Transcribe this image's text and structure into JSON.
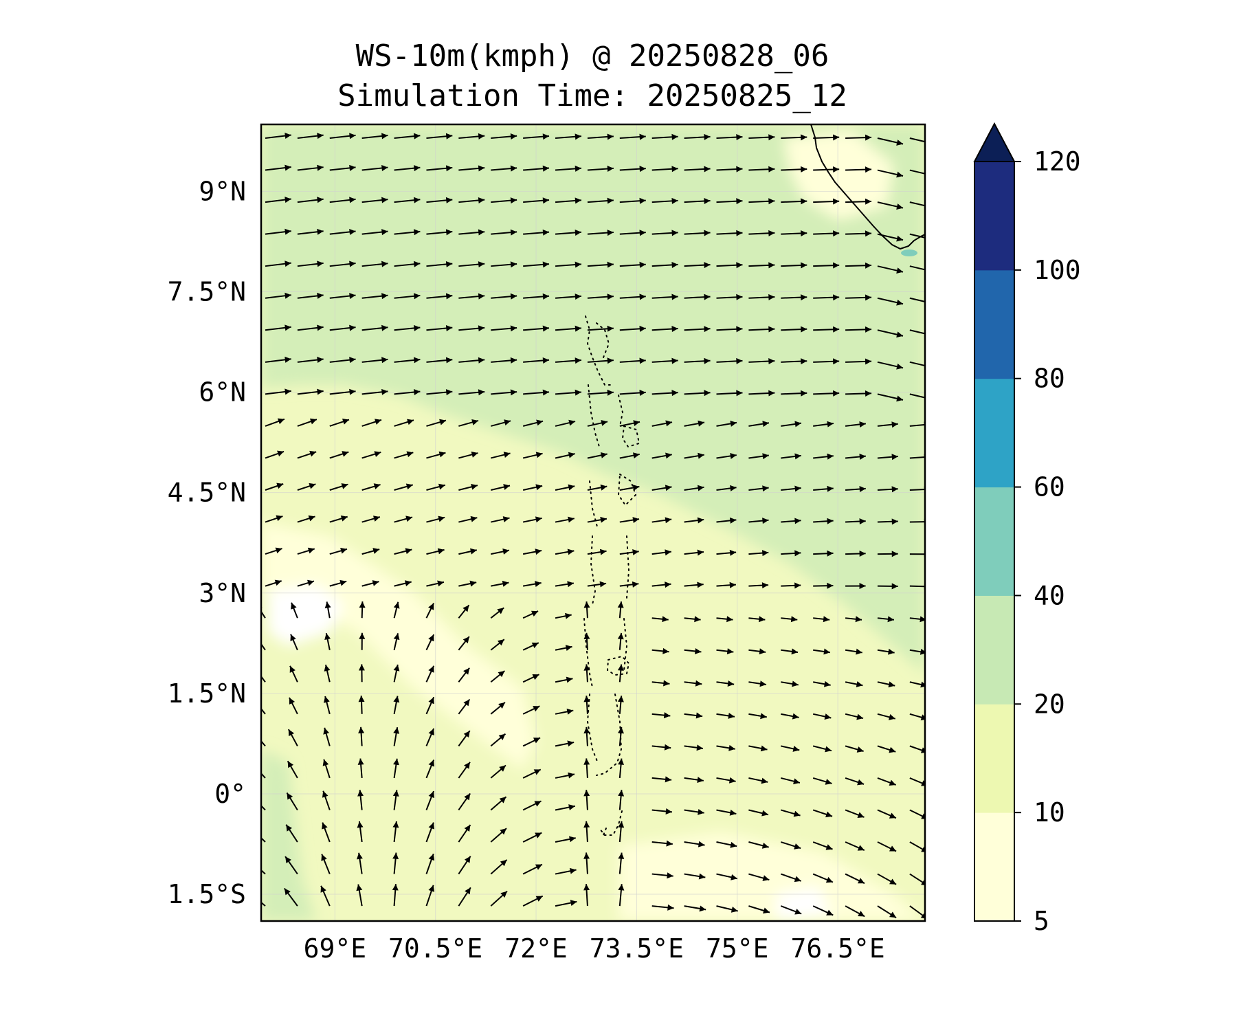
{
  "title": {
    "line1": "WS-10m(kmph) @ 20250828_06",
    "line2": "Simulation Time: 20250825_12"
  },
  "map": {
    "lon_range": [
      67.9,
      77.8
    ],
    "lat_range": [
      -1.9,
      10.0
    ],
    "lon_ticks": [
      {
        "value": 69,
        "label": "69°E"
      },
      {
        "value": 70.5,
        "label": "70.5°E"
      },
      {
        "value": 72,
        "label": "72°E"
      },
      {
        "value": 73.5,
        "label": "73.5°E"
      },
      {
        "value": 75,
        "label": "75°E"
      },
      {
        "value": 76.5,
        "label": "76.5°E"
      }
    ],
    "lat_ticks": [
      {
        "value": 9,
        "label": "9°N"
      },
      {
        "value": 7.5,
        "label": "7.5°N"
      },
      {
        "value": 6,
        "label": "6°N"
      },
      {
        "value": 4.5,
        "label": "4.5°N"
      },
      {
        "value": 3,
        "label": "3°N"
      },
      {
        "value": 1.5,
        "label": "1.5°N"
      },
      {
        "value": 0,
        "label": "0°"
      },
      {
        "value": -1.5,
        "label": "1.5°S"
      }
    ],
    "gridlines": true,
    "coastline": "India southern tip (top-right)",
    "islands": "Maldives atolls (dotted, center)",
    "vectors": "wind direction arrows on a regular grid"
  },
  "colorbar": {
    "levels": [
      {
        "label": "5",
        "color": "#ffffd9"
      },
      {
        "label": "10",
        "color": "#edf8b1"
      },
      {
        "label": "20",
        "color": "#c7e9b4"
      },
      {
        "label": "40",
        "color": "#7fcdbb"
      },
      {
        "label": "60",
        "color": "#2ea3c6"
      },
      {
        "label": "80",
        "color": "#2166ac"
      },
      {
        "label": "100",
        "color": "#1d2c7e"
      },
      {
        "label": "120",
        "color": "#0c1f56"
      }
    ],
    "extend": "max"
  },
  "colors": {
    "field_low": "#ffffd9",
    "field_mid": "#f1f9c0",
    "field_high": "#d4eeb8",
    "gridline": "#d0d0d0",
    "frame": "#000000"
  }
}
